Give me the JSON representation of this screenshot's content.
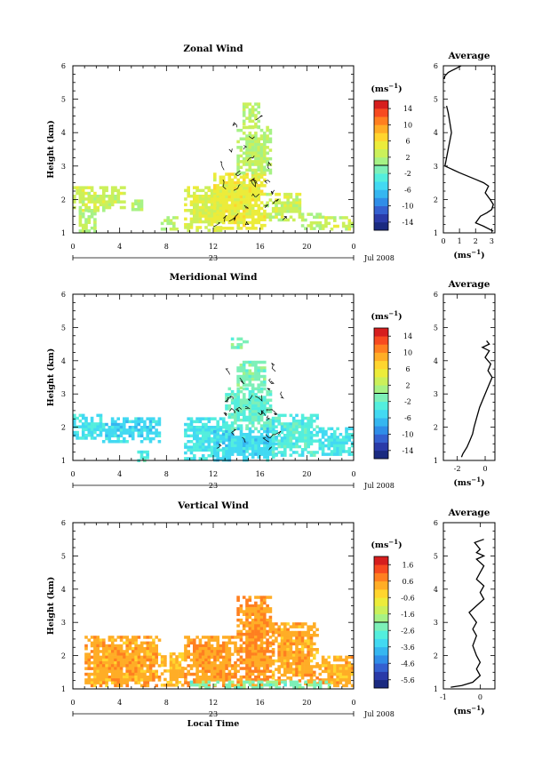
{
  "chart_data": [
    {
      "type": "heatmap",
      "title": "Zonal Wind",
      "ylabel": "Height (km)",
      "xlabel": "",
      "xticks": [
        "0",
        "4",
        "8",
        "12",
        "16",
        "20",
        "0"
      ],
      "yticks": [
        "1",
        "2",
        "3",
        "4",
        "5",
        "6"
      ],
      "xlim": [
        0,
        24
      ],
      "ylim": [
        1,
        6
      ],
      "day_label": "23",
      "month_label": "Jul 2008",
      "colorbar": {
        "unit": "(ms⁻¹)",
        "tick_labels": [
          "14",
          "10",
          "6",
          "2",
          "-2",
          "-6",
          "-10",
          "-14"
        ],
        "range": [
          -16,
          16
        ],
        "colors": [
          "#1a2a80",
          "#2a3aa8",
          "#3460d0",
          "#2f8de8",
          "#35b6f0",
          "#42d9f2",
          "#53eedd",
          "#7df0b8",
          "#a6f285",
          "#cbf05a",
          "#ecec3a",
          "#ffd52e",
          "#ffad26",
          "#ff7f20",
          "#f74a20",
          "#d61e1e"
        ]
      },
      "regions": [
        {
          "t0": 0,
          "t1": 4.5,
          "h0": 1.7,
          "h1": 2.4,
          "v": 3
        },
        {
          "t0": 0.5,
          "t1": 2,
          "h0": 1.1,
          "h1": 1.7,
          "v": 2
        },
        {
          "t0": 5,
          "t1": 6,
          "h0": 1.7,
          "h1": 2.0,
          "v": 2
        },
        {
          "t0": 7.5,
          "t1": 9,
          "h0": 1.1,
          "h1": 1.5,
          "v": 2
        },
        {
          "t0": 9.5,
          "t1": 13,
          "h0": 1.1,
          "h1": 2.4,
          "v": 4
        },
        {
          "t0": 12,
          "t1": 16.5,
          "h0": 1.1,
          "h1": 2.8,
          "v": 5
        },
        {
          "t0": 16.5,
          "t1": 19.5,
          "h0": 1.4,
          "h1": 2.2,
          "v": 3
        },
        {
          "t0": 19.5,
          "t1": 21.5,
          "h0": 1.1,
          "h1": 1.6,
          "v": 2
        },
        {
          "t0": 21.5,
          "t1": 24,
          "h0": 1.1,
          "h1": 1.5,
          "v": 3
        },
        {
          "t0": 14,
          "t1": 17,
          "h0": 2.8,
          "h1": 4.2,
          "v": 2
        },
        {
          "t0": 14.5,
          "t1": 16,
          "h0": 4.2,
          "h1": 4.9,
          "v": 2
        }
      ],
      "contour": "wavy",
      "profile": {
        "title": "Average",
        "xlabel": "(ms⁻¹)",
        "xticks": [
          "0",
          "1",
          "2",
          "3"
        ],
        "xlim": [
          0,
          3.2
        ],
        "x": [
          1.1,
          0.9,
          0.7,
          0.5,
          0.3,
          0.2,
          0.1,
          0.05,
          0.2,
          0.3,
          0.4,
          0.5,
          0.3,
          0.1,
          1.0,
          2.0,
          2.5,
          2.8,
          2.6,
          2.9,
          3.1,
          3.0,
          2.7,
          2.3,
          2.0,
          2.5,
          3.1
        ],
        "y": [
          6.0,
          5.95,
          5.9,
          5.85,
          5.8,
          5.75,
          5.7,
          5.6,
          4.8,
          4.6,
          4.3,
          4.0,
          3.5,
          3.0,
          2.8,
          2.6,
          2.5,
          2.4,
          2.2,
          2.0,
          1.85,
          1.7,
          1.6,
          1.5,
          1.3,
          1.2,
          1.05
        ],
        "segments": [
          [
            0,
            8
          ],
          [
            8,
            27
          ]
        ]
      }
    },
    {
      "type": "heatmap",
      "title": "Meridional Wind",
      "ylabel": "Height (km)",
      "xlabel": "",
      "xticks": [
        "0",
        "4",
        "8",
        "12",
        "16",
        "20",
        "0"
      ],
      "yticks": [
        "1",
        "2",
        "3",
        "4",
        "5",
        "6"
      ],
      "xlim": [
        0,
        24
      ],
      "ylim": [
        1,
        6
      ],
      "day_label": "23",
      "month_label": "Jul 2008",
      "colorbar": {
        "unit": "(ms⁻¹)",
        "tick_labels": [
          "14",
          "10",
          "6",
          "2",
          "-2",
          "-6",
          "-10",
          "-14"
        ],
        "range": [
          -16,
          16
        ],
        "colors": [
          "#1a2a80",
          "#2a3aa8",
          "#3460d0",
          "#2f8de8",
          "#35b6f0",
          "#42d9f2",
          "#53eedd",
          "#7df0b8",
          "#a6f285",
          "#cbf05a",
          "#ecec3a",
          "#ffd52e",
          "#ffad26",
          "#ff7f20",
          "#f74a20",
          "#d61e1e"
        ]
      },
      "regions": [
        {
          "t0": 0,
          "t1": 2.5,
          "h0": 1.7,
          "h1": 2.4,
          "v": -4
        },
        {
          "t0": 2.5,
          "t1": 7.5,
          "h0": 1.6,
          "h1": 2.3,
          "v": -5
        },
        {
          "t0": 5.5,
          "t1": 6.5,
          "h0": 1.0,
          "h1": 1.3,
          "v": -3
        },
        {
          "t0": 9.5,
          "t1": 13,
          "h0": 1.1,
          "h1": 2.3,
          "v": -4
        },
        {
          "t0": 12,
          "t1": 17.5,
          "h0": 1.0,
          "h1": 2.0,
          "v": -5
        },
        {
          "t0": 13,
          "t1": 17,
          "h0": 2.0,
          "h1": 3.2,
          "v": -2
        },
        {
          "t0": 17,
          "t1": 21,
          "h0": 1.2,
          "h1": 2.4,
          "v": -3
        },
        {
          "t0": 21,
          "t1": 24,
          "h0": 1.2,
          "h1": 2.0,
          "v": -4
        },
        {
          "t0": 14,
          "t1": 16.5,
          "h0": 3.2,
          "h1": 4.0,
          "v": -1
        },
        {
          "t0": 13.5,
          "t1": 15,
          "h0": 4.4,
          "h1": 4.7,
          "v": -1
        }
      ],
      "contour": "wavy",
      "profile": {
        "title": "Average",
        "xlabel": "(ms⁻¹)",
        "xticks": [
          "-2",
          "0"
        ],
        "xlim": [
          -3,
          0.7
        ],
        "x": [
          -1.7,
          -1.6,
          -1.3,
          -1.1,
          -0.9,
          -0.8,
          -0.6,
          -0.4,
          -0.2,
          0.0,
          0.3,
          0.5,
          0.2,
          0.4,
          0.0,
          0.3,
          -0.2,
          0.3,
          0.1
        ],
        "y": [
          1.1,
          1.2,
          1.4,
          1.6,
          1.8,
          2.0,
          2.3,
          2.6,
          2.8,
          3.0,
          3.3,
          3.5,
          3.7,
          3.9,
          4.1,
          4.3,
          4.4,
          4.5,
          4.6
        ],
        "segments": [
          [
            0,
            19
          ]
        ]
      }
    },
    {
      "type": "heatmap",
      "title": "Vertical Wind",
      "ylabel": "Height (km)",
      "xlabel": "Local Time",
      "xticks": [
        "0",
        "4",
        "8",
        "12",
        "16",
        "20",
        "0"
      ],
      "yticks": [
        "1",
        "2",
        "3",
        "4",
        "5",
        "6"
      ],
      "xlim": [
        0,
        24
      ],
      "ylim": [
        1,
        6
      ],
      "day_label": "23",
      "month_label": "Jul 2008",
      "colorbar": {
        "unit": "(ms⁻¹)",
        "tick_labels": [
          "1.6",
          "0.6",
          "-0.6",
          "-1.6",
          "-2.6",
          "-3.6",
          "-4.6",
          "-5.6"
        ],
        "range": [
          -6.2,
          2.2
        ],
        "colors": [
          "#1a2a80",
          "#2a3aa8",
          "#3460d0",
          "#2f8de8",
          "#35b6f0",
          "#42d9f2",
          "#53eedd",
          "#7df0b8",
          "#a6f285",
          "#cbf05a",
          "#ecec3a",
          "#ffd52e",
          "#ffad26",
          "#ff7f20",
          "#f74a20",
          "#d61e1e"
        ]
      },
      "regions": [
        {
          "t0": 1,
          "t1": 7.5,
          "h0": 1.1,
          "h1": 2.6,
          "v": 0.4
        },
        {
          "t0": 7.5,
          "t1": 9.5,
          "h0": 1.1,
          "h1": 2.1,
          "v": 0.2
        },
        {
          "t0": 9.5,
          "t1": 14,
          "h0": 1.1,
          "h1": 2.6,
          "v": 0.5
        },
        {
          "t0": 14,
          "t1": 17,
          "h0": 1.1,
          "h1": 3.8,
          "v": 0.6
        },
        {
          "t0": 17,
          "t1": 21,
          "h0": 1.2,
          "h1": 3.0,
          "v": 0.4
        },
        {
          "t0": 21,
          "t1": 24,
          "h0": 1.1,
          "h1": 2.0,
          "v": 0.3
        },
        {
          "t0": 10,
          "t1": 22,
          "h0": 1.0,
          "h1": 1.25,
          "v": -2.2
        }
      ],
      "contour": "none",
      "profile": {
        "title": "Average",
        "xlabel": "(ms⁻¹)",
        "xticks": [
          "-1",
          "0"
        ],
        "xlim": [
          -1,
          0.4
        ],
        "x": [
          -0.8,
          -0.5,
          -0.2,
          0.0,
          -0.1,
          0.0,
          -0.1,
          -0.2,
          -0.1,
          -0.2,
          -0.1,
          -0.3,
          -0.1,
          0.1,
          0.0,
          0.1,
          -0.1,
          0.0,
          0.1,
          -0.1,
          0.1,
          -0.1,
          0.0,
          -0.15,
          0.1
        ],
        "y": [
          1.05,
          1.1,
          1.2,
          1.4,
          1.6,
          1.8,
          2.0,
          2.3,
          2.6,
          2.8,
          3.0,
          3.3,
          3.5,
          3.7,
          3.9,
          4.1,
          4.3,
          4.5,
          4.7,
          4.9,
          5.0,
          5.1,
          5.2,
          5.4,
          5.5
        ],
        "segments": [
          [
            0,
            25
          ]
        ]
      }
    }
  ]
}
